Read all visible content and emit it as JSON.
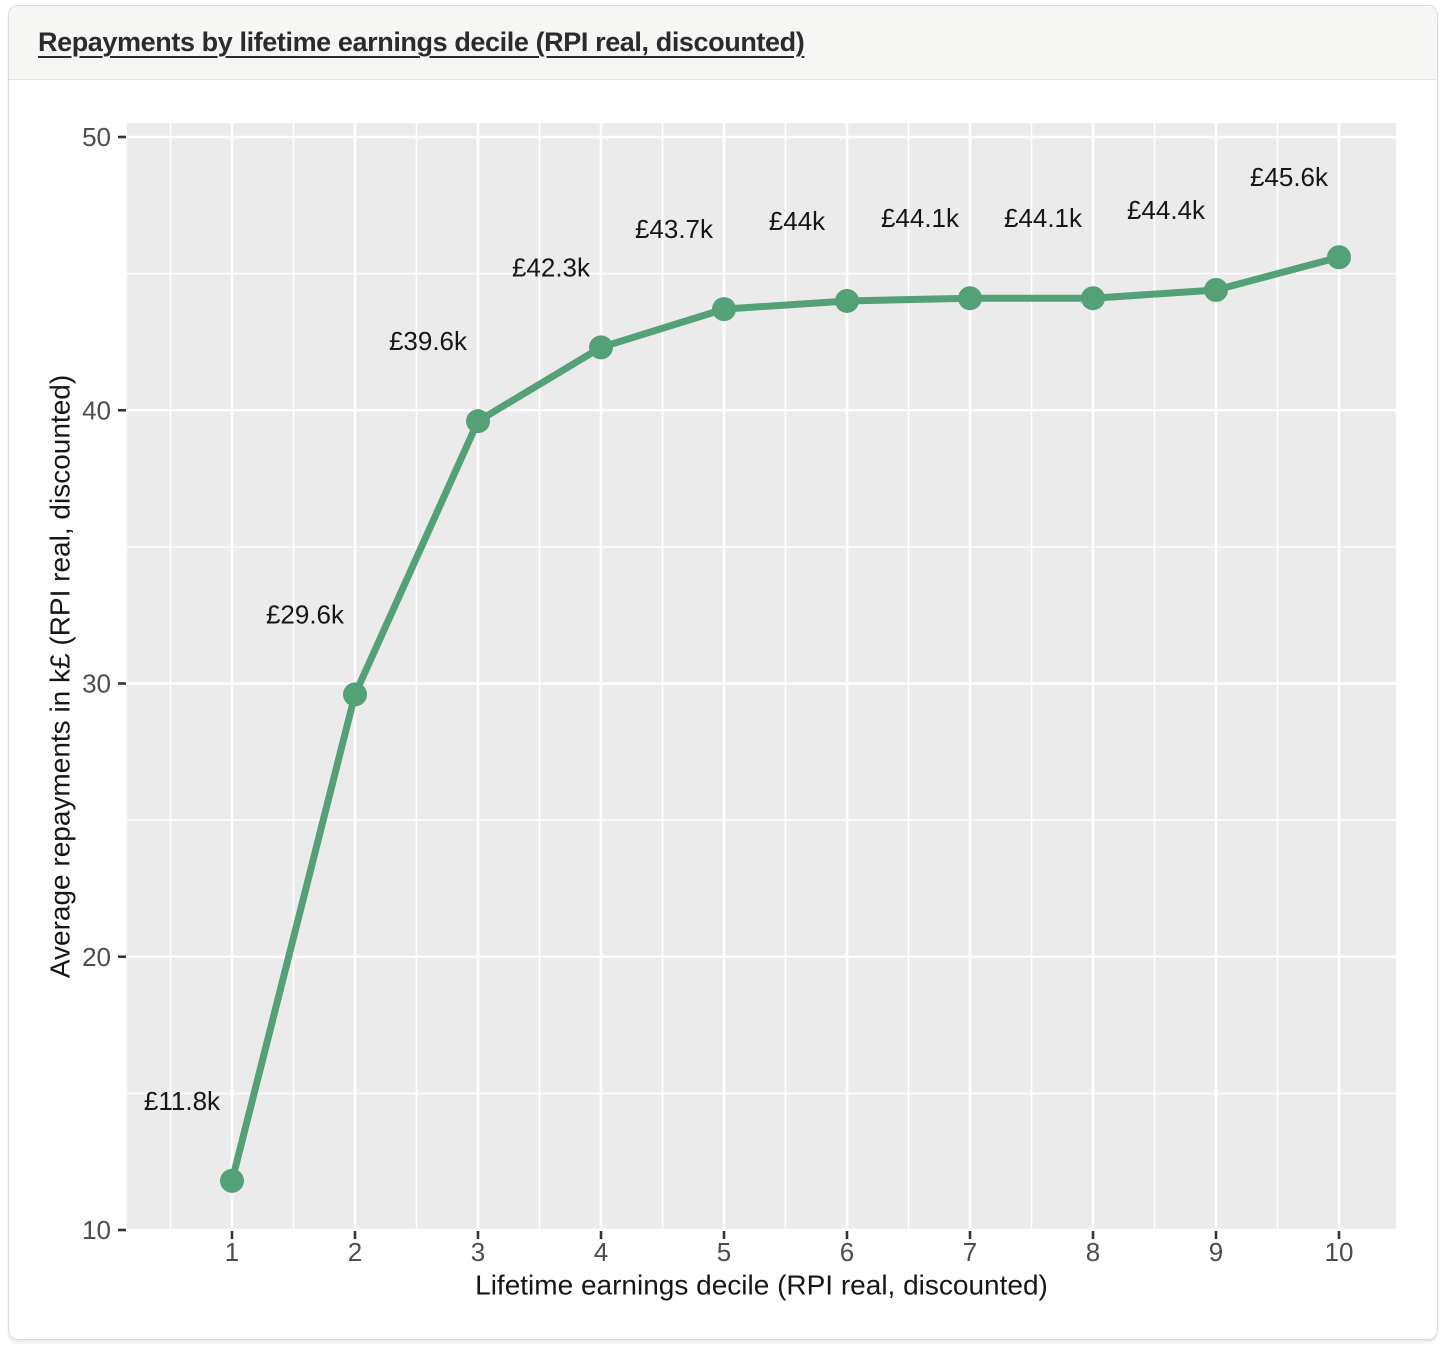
{
  "page": {
    "title": "Repayments by lifetime earnings decile (RPI real, discounted)"
  },
  "chart_data": {
    "type": "line",
    "title": "Repayments by lifetime earnings decile (RPI real, discounted)",
    "xlabel": "Lifetime earnings decile (RPI real, discounted)",
    "ylabel": "Average repayments in k£ (RPI real, discounted)",
    "x": [
      1,
      2,
      3,
      4,
      5,
      6,
      7,
      8,
      9,
      10
    ],
    "values": [
      11.8,
      29.6,
      39.6,
      42.3,
      43.7,
      44.0,
      44.1,
      44.1,
      44.4,
      45.6
    ],
    "point_labels": [
      "£11.8k",
      "£29.6k",
      "£39.6k",
      "£42.3k",
      "£43.7k",
      "£44k",
      "£44.1k",
      "£44.1k",
      "£44.4k",
      "£45.6k"
    ],
    "x_ticks": [
      1,
      2,
      3,
      4,
      5,
      6,
      7,
      8,
      9,
      10
    ],
    "y_ticks": [
      10,
      20,
      30,
      40,
      50
    ],
    "xlim": [
      0.15,
      10.45
    ],
    "ylim": [
      9.5,
      50.5
    ],
    "grid": true,
    "legend": "none",
    "colors": {
      "series": "#54a077",
      "panel_bg": "#ebebeb",
      "grid": "#ffffff",
      "tick_mark": "#333333",
      "tick_label": "#4d4d4d",
      "text": "#161616"
    }
  }
}
